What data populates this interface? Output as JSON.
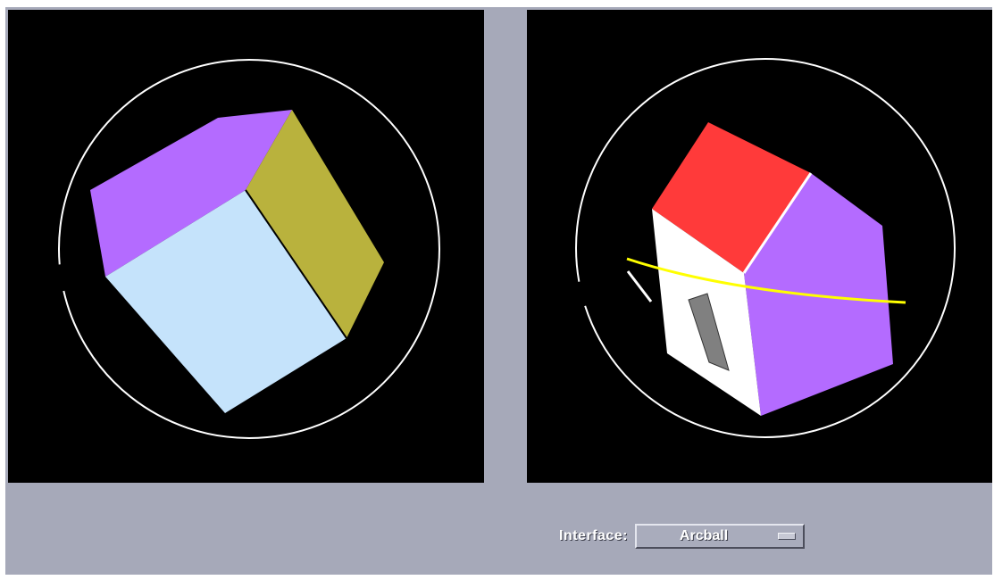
{
  "controls": {
    "interface_label": "Interface:",
    "interface_value": "Arcball"
  },
  "colors": {
    "panel_background": "#a6a9b9",
    "viewport_background": "#000000",
    "arcball_circle": "#ffffff",
    "drag_arc": "#ffff00",
    "cube_top": "#b46bff",
    "cube_right": "#b9b23d",
    "cube_front": "#c5e3fb",
    "house_roof": "#ff3a3a",
    "house_side": "#b46bff",
    "house_front": "#ffffff",
    "house_door": "#808080"
  },
  "icons": {
    "dropdown": "option-menu-indicator-icon"
  }
}
